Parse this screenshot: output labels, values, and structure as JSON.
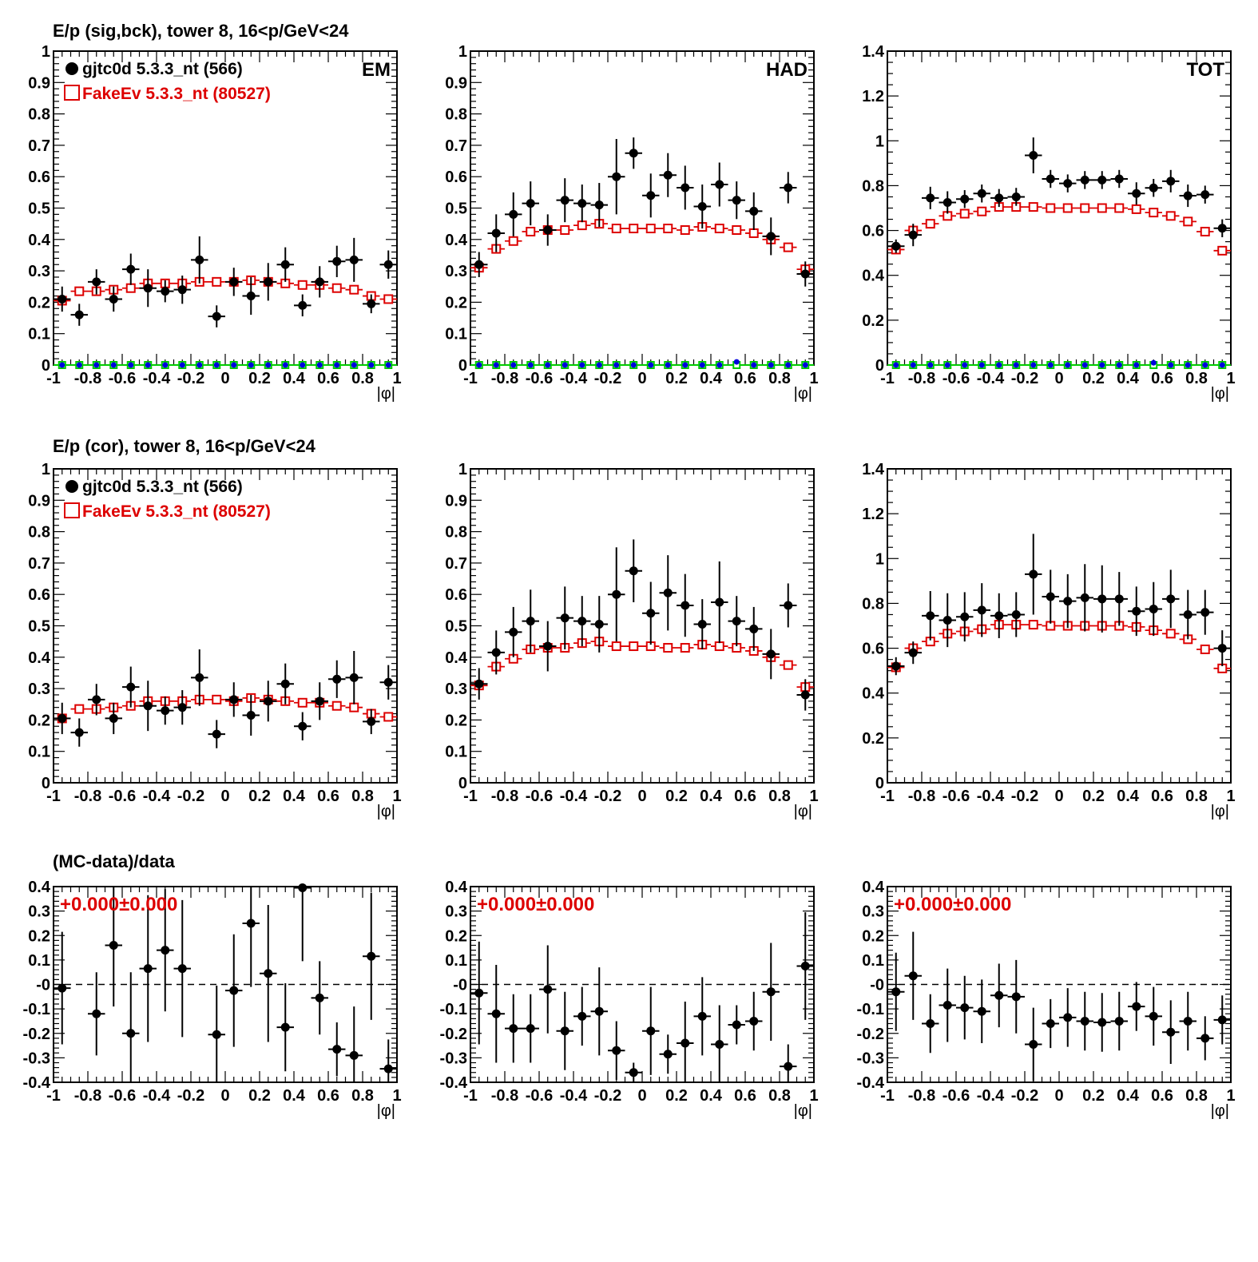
{
  "colors": {
    "data": "#000000",
    "mc": "#dd0000",
    "green": "#00cc00",
    "blue": "#0000dd"
  },
  "row_titles": [
    "E/p (sig,bck), tower 8, 16<p/GeV<24",
    "E/p (cor), tower 8, 16<p/GeV<24",
    "(MC-data)/data"
  ],
  "legend": {
    "data": "gjtc0d 5.3.3_nt (566)",
    "mc": "FakeEv 5.3.3_nt (80527)"
  },
  "xlabel": "|φ|",
  "x_ticks": [
    "-1",
    "-0.8",
    "-0.6",
    "-0.4",
    "-0.2",
    "0",
    "0.2",
    "0.4",
    "0.6",
    "0.8",
    "1"
  ],
  "panel_labels": [
    "EM",
    "HAD",
    "TOT"
  ],
  "ratio_text": "+0.000±0.000",
  "chart_data": [
    {
      "type": "scatter",
      "row": 0,
      "col": 0,
      "label": "EM",
      "xlim": [
        -1,
        1
      ],
      "ylim": [
        0,
        1
      ],
      "y_ticks": [
        "0",
        "0.1",
        "0.2",
        "0.3",
        "0.4",
        "0.5",
        "0.6",
        "0.7",
        "0.8",
        "0.9",
        "1"
      ],
      "x": [
        -0.95,
        -0.85,
        -0.75,
        -0.65,
        -0.55,
        -0.45,
        -0.35,
        -0.25,
        -0.15,
        -0.05,
        0.05,
        0.15,
        0.25,
        0.35,
        0.45,
        0.55,
        0.65,
        0.75,
        0.85,
        0.95
      ],
      "series": [
        {
          "key": "data",
          "values": [
            0.21,
            0.16,
            0.265,
            0.21,
            0.305,
            0.245,
            0.235,
            0.24,
            0.335,
            0.155,
            0.265,
            0.22,
            0.265,
            0.32,
            0.19,
            0.265,
            0.33,
            0.335,
            0.195,
            0.32
          ],
          "errors": [
            0.04,
            0.035,
            0.04,
            0.04,
            0.05,
            0.06,
            0.035,
            0.045,
            0.075,
            0.035,
            0.045,
            0.06,
            0.06,
            0.055,
            0.035,
            0.05,
            0.05,
            0.07,
            0.03,
            0.045
          ]
        },
        {
          "key": "mc",
          "values": [
            0.205,
            0.235,
            0.235,
            0.24,
            0.245,
            0.26,
            0.26,
            0.26,
            0.265,
            0.265,
            0.265,
            0.27,
            0.265,
            0.26,
            0.255,
            0.255,
            0.245,
            0.24,
            0.22,
            0.21
          ]
        },
        {
          "key": "green",
          "values": [
            0,
            0,
            0,
            0,
            0,
            0,
            0,
            0,
            0,
            0,
            0,
            0,
            0,
            0,
            0,
            0,
            0,
            0,
            0,
            0
          ]
        },
        {
          "key": "blue",
          "values": [
            0,
            0,
            0,
            0,
            0,
            0,
            0,
            0,
            0,
            0,
            0,
            0,
            0,
            0,
            0,
            0,
            0,
            0,
            0,
            0
          ]
        }
      ]
    },
    {
      "type": "scatter",
      "row": 0,
      "col": 1,
      "label": "HAD",
      "xlim": [
        -1,
        1
      ],
      "ylim": [
        0,
        1
      ],
      "y_ticks": [
        "0",
        "0.1",
        "0.2",
        "0.3",
        "0.4",
        "0.5",
        "0.6",
        "0.7",
        "0.8",
        "0.9",
        "1"
      ],
      "x": [
        -0.95,
        -0.85,
        -0.75,
        -0.65,
        -0.55,
        -0.45,
        -0.35,
        -0.25,
        -0.15,
        -0.05,
        0.05,
        0.15,
        0.25,
        0.35,
        0.45,
        0.55,
        0.65,
        0.75,
        0.85,
        0.95
      ],
      "series": [
        {
          "key": "data",
          "values": [
            0.32,
            0.42,
            0.48,
            0.515,
            0.43,
            0.525,
            0.515,
            0.51,
            0.6,
            0.675,
            0.54,
            0.605,
            0.565,
            0.505,
            0.575,
            0.525,
            0.49,
            0.41,
            0.565,
            0.29
          ],
          "errors": [
            0.04,
            0.06,
            0.07,
            0.07,
            0.05,
            0.07,
            0.06,
            0.07,
            0.12,
            0.05,
            0.07,
            0.07,
            0.07,
            0.07,
            0.07,
            0.06,
            0.06,
            0.06,
            0.05,
            0.04
          ]
        },
        {
          "key": "mc",
          "values": [
            0.31,
            0.37,
            0.395,
            0.425,
            0.43,
            0.43,
            0.445,
            0.45,
            0.435,
            0.435,
            0.435,
            0.435,
            0.43,
            0.44,
            0.435,
            0.43,
            0.42,
            0.4,
            0.375,
            0.305
          ]
        },
        {
          "key": "green",
          "values": [
            0,
            0,
            0,
            0,
            0,
            0,
            0,
            0,
            0,
            0,
            0,
            0,
            0,
            0,
            0,
            0,
            0,
            0,
            0,
            0
          ]
        },
        {
          "key": "blue",
          "values": [
            0,
            0,
            0,
            0,
            0,
            0,
            0,
            0,
            0,
            0,
            0,
            0,
            0,
            0,
            0,
            0.01,
            0,
            0,
            0,
            0
          ]
        }
      ]
    },
    {
      "type": "scatter",
      "row": 0,
      "col": 2,
      "label": "TOT",
      "xlim": [
        -1,
        1
      ],
      "ylim": [
        0,
        1.4
      ],
      "y_ticks": [
        "0",
        "0.2",
        "0.4",
        "0.6",
        "0.8",
        "1",
        "1.2",
        "1.4"
      ],
      "x": [
        -0.95,
        -0.85,
        -0.75,
        -0.65,
        -0.55,
        -0.45,
        -0.35,
        -0.25,
        -0.15,
        -0.05,
        0.05,
        0.15,
        0.25,
        0.35,
        0.45,
        0.55,
        0.65,
        0.75,
        0.85,
        0.95
      ],
      "series": [
        {
          "key": "data",
          "values": [
            0.53,
            0.58,
            0.745,
            0.725,
            0.74,
            0.765,
            0.745,
            0.75,
            0.935,
            0.83,
            0.81,
            0.825,
            0.825,
            0.83,
            0.765,
            0.79,
            0.82,
            0.755,
            0.76,
            0.61
          ],
          "errors": [
            0.03,
            0.05,
            0.05,
            0.05,
            0.04,
            0.04,
            0.04,
            0.04,
            0.08,
            0.04,
            0.04,
            0.04,
            0.04,
            0.04,
            0.05,
            0.04,
            0.05,
            0.05,
            0.04,
            0.04
          ]
        },
        {
          "key": "mc",
          "values": [
            0.515,
            0.6,
            0.63,
            0.665,
            0.675,
            0.685,
            0.705,
            0.705,
            0.705,
            0.7,
            0.7,
            0.7,
            0.7,
            0.7,
            0.695,
            0.68,
            0.665,
            0.64,
            0.595,
            0.51
          ]
        },
        {
          "key": "green",
          "values": [
            0,
            0,
            0,
            0,
            0,
            0,
            0,
            0,
            0,
            0,
            0,
            0,
            0,
            0,
            0,
            0,
            0,
            0,
            0,
            0
          ]
        },
        {
          "key": "blue",
          "values": [
            0,
            0,
            0,
            0,
            0,
            0,
            0,
            0,
            0,
            0,
            0,
            0,
            0,
            0,
            0,
            0.01,
            0,
            0,
            0,
            0
          ]
        }
      ]
    },
    {
      "type": "scatter",
      "row": 1,
      "col": 0,
      "xlim": [
        -1,
        1
      ],
      "ylim": [
        0,
        1
      ],
      "y_ticks": [
        "0",
        "0.1",
        "0.2",
        "0.3",
        "0.4",
        "0.5",
        "0.6",
        "0.7",
        "0.8",
        "0.9",
        "1"
      ],
      "x": [
        -0.95,
        -0.85,
        -0.75,
        -0.65,
        -0.55,
        -0.45,
        -0.35,
        -0.25,
        -0.15,
        -0.05,
        0.05,
        0.15,
        0.25,
        0.35,
        0.45,
        0.55,
        0.65,
        0.75,
        0.85,
        0.95
      ],
      "series": [
        {
          "key": "data",
          "values": [
            0.205,
            0.16,
            0.265,
            0.205,
            0.305,
            0.245,
            0.23,
            0.24,
            0.335,
            0.155,
            0.265,
            0.215,
            0.26,
            0.315,
            0.18,
            0.26,
            0.33,
            0.335,
            0.195,
            0.32
          ],
          "errors": [
            0.05,
            0.045,
            0.05,
            0.05,
            0.065,
            0.08,
            0.045,
            0.055,
            0.09,
            0.045,
            0.055,
            0.065,
            0.065,
            0.065,
            0.045,
            0.06,
            0.06,
            0.085,
            0.04,
            0.055
          ]
        },
        {
          "key": "mc",
          "values": [
            0.205,
            0.235,
            0.235,
            0.24,
            0.245,
            0.26,
            0.26,
            0.26,
            0.265,
            0.265,
            0.26,
            0.27,
            0.265,
            0.26,
            0.255,
            0.255,
            0.245,
            0.24,
            0.22,
            0.21
          ]
        }
      ]
    },
    {
      "type": "scatter",
      "row": 1,
      "col": 1,
      "xlim": [
        -1,
        1
      ],
      "ylim": [
        0,
        1
      ],
      "y_ticks": [
        "0",
        "0.1",
        "0.2",
        "0.3",
        "0.4",
        "0.5",
        "0.6",
        "0.7",
        "0.8",
        "0.9",
        "1"
      ],
      "x": [
        -0.95,
        -0.85,
        -0.75,
        -0.65,
        -0.55,
        -0.45,
        -0.35,
        -0.25,
        -0.15,
        -0.05,
        0.05,
        0.15,
        0.25,
        0.35,
        0.45,
        0.55,
        0.65,
        0.75,
        0.85,
        0.95
      ],
      "series": [
        {
          "key": "data",
          "values": [
            0.315,
            0.415,
            0.48,
            0.515,
            0.435,
            0.525,
            0.515,
            0.505,
            0.6,
            0.675,
            0.54,
            0.605,
            0.565,
            0.505,
            0.575,
            0.515,
            0.49,
            0.41,
            0.565,
            0.28
          ],
          "errors": [
            0.05,
            0.07,
            0.08,
            0.1,
            0.08,
            0.1,
            0.08,
            0.09,
            0.15,
            0.1,
            0.1,
            0.12,
            0.1,
            0.08,
            0.13,
            0.08,
            0.07,
            0.08,
            0.07,
            0.05
          ]
        },
        {
          "key": "mc",
          "values": [
            0.31,
            0.37,
            0.395,
            0.425,
            0.43,
            0.43,
            0.445,
            0.45,
            0.435,
            0.435,
            0.435,
            0.43,
            0.43,
            0.44,
            0.435,
            0.43,
            0.42,
            0.4,
            0.375,
            0.305
          ]
        }
      ]
    },
    {
      "type": "scatter",
      "row": 1,
      "col": 2,
      "xlim": [
        -1,
        1
      ],
      "ylim": [
        0,
        1.4
      ],
      "y_ticks": [
        "0",
        "0.2",
        "0.4",
        "0.6",
        "0.8",
        "1",
        "1.2",
        "1.4"
      ],
      "x": [
        -0.95,
        -0.85,
        -0.75,
        -0.65,
        -0.55,
        -0.45,
        -0.35,
        -0.25,
        -0.15,
        -0.05,
        0.05,
        0.15,
        0.25,
        0.35,
        0.45,
        0.55,
        0.65,
        0.75,
        0.85,
        0.95
      ],
      "series": [
        {
          "key": "data",
          "values": [
            0.52,
            0.58,
            0.745,
            0.725,
            0.74,
            0.77,
            0.745,
            0.75,
            0.93,
            0.83,
            0.81,
            0.825,
            0.82,
            0.82,
            0.765,
            0.775,
            0.82,
            0.75,
            0.76,
            0.6
          ],
          "errors": [
            0.04,
            0.05,
            0.11,
            0.12,
            0.11,
            0.12,
            0.1,
            0.1,
            0.18,
            0.12,
            0.12,
            0.15,
            0.15,
            0.12,
            0.11,
            0.12,
            0.13,
            0.11,
            0.1,
            0.08
          ]
        },
        {
          "key": "mc",
          "values": [
            0.515,
            0.6,
            0.63,
            0.665,
            0.675,
            0.685,
            0.705,
            0.705,
            0.705,
            0.7,
            0.7,
            0.7,
            0.7,
            0.7,
            0.695,
            0.68,
            0.665,
            0.64,
            0.595,
            0.51
          ]
        }
      ]
    },
    {
      "type": "scatter",
      "row": 2,
      "col": 0,
      "xlim": [
        -1,
        1
      ],
      "ylim": [
        -0.4,
        0.4
      ],
      "y_ticks": [
        "-0.4",
        "-0.3",
        "-0.2",
        "-0.1",
        "-0",
        "0.1",
        "0.2",
        "0.3",
        "0.4"
      ],
      "x": [
        -0.95,
        -0.85,
        -0.75,
        -0.65,
        -0.55,
        -0.45,
        -0.35,
        -0.25,
        -0.15,
        -0.05,
        0.05,
        0.15,
        0.25,
        0.35,
        0.45,
        0.55,
        0.65,
        0.75,
        0.85,
        0.95
      ],
      "series": [
        {
          "key": "data",
          "points": [
            0,
            2,
            3,
            4,
            5,
            6,
            7,
            9,
            10,
            11,
            12,
            13,
            14,
            15,
            16,
            17,
            18,
            19
          ],
          "values": [
            -0.015,
            -0.12,
            0.16,
            -0.2,
            0.065,
            0.14,
            0.065,
            -0.205,
            -0.025,
            0.25,
            0.045,
            -0.175,
            0.395,
            -0.055,
            -0.265,
            -0.29,
            0.115,
            -0.345
          ],
          "errors": [
            0.23,
            0.17,
            0.25,
            0.25,
            0.3,
            0.25,
            0.28,
            0.2,
            0.23,
            0.26,
            0.28,
            0.18,
            0.3,
            0.15,
            0.11,
            0.2,
            0.26,
            0.12
          ]
        }
      ]
    },
    {
      "type": "scatter",
      "row": 2,
      "col": 1,
      "xlim": [
        -1,
        1
      ],
      "ylim": [
        -0.4,
        0.4
      ],
      "y_ticks": [
        "-0.4",
        "-0.3",
        "-0.2",
        "-0.1",
        "-0",
        "0.1",
        "0.2",
        "0.3",
        "0.4"
      ],
      "x": [
        -0.95,
        -0.85,
        -0.75,
        -0.65,
        -0.55,
        -0.45,
        -0.35,
        -0.25,
        -0.15,
        -0.05,
        0.05,
        0.15,
        0.25,
        0.35,
        0.45,
        0.55,
        0.65,
        0.75,
        0.85,
        0.95
      ],
      "series": [
        {
          "key": "data",
          "values": [
            -0.035,
            -0.12,
            -0.18,
            -0.18,
            -0.02,
            -0.19,
            -0.13,
            -0.11,
            -0.27,
            -0.36,
            -0.19,
            -0.285,
            -0.24,
            -0.13,
            -0.245,
            -0.165,
            -0.15,
            -0.03,
            -0.335,
            0.075
          ],
          "errors": [
            0.21,
            0.2,
            0.14,
            0.14,
            0.18,
            0.16,
            0.12,
            0.18,
            0.12,
            0.04,
            0.18,
            0.08,
            0.17,
            0.16,
            0.16,
            0.08,
            0.12,
            0.2,
            0.09,
            0.22
          ]
        }
      ]
    },
    {
      "type": "scatter",
      "row": 2,
      "col": 2,
      "xlim": [
        -1,
        1
      ],
      "ylim": [
        -0.4,
        0.4
      ],
      "y_ticks": [
        "-0.4",
        "-0.3",
        "-0.2",
        "-0.1",
        "-0",
        "0.1",
        "0.2",
        "0.3",
        "0.4"
      ],
      "x": [
        -0.95,
        -0.85,
        -0.75,
        -0.65,
        -0.55,
        -0.45,
        -0.35,
        -0.25,
        -0.15,
        -0.05,
        0.05,
        0.15,
        0.25,
        0.35,
        0.45,
        0.55,
        0.65,
        0.75,
        0.85,
        0.95
      ],
      "series": [
        {
          "key": "data",
          "values": [
            -0.03,
            0.035,
            -0.16,
            -0.085,
            -0.095,
            -0.11,
            -0.045,
            -0.05,
            -0.245,
            -0.16,
            -0.135,
            -0.15,
            -0.155,
            -0.15,
            -0.09,
            -0.13,
            -0.195,
            -0.15,
            -0.22,
            -0.145
          ],
          "errors": [
            0.16,
            0.18,
            0.12,
            0.15,
            0.13,
            0.13,
            0.13,
            0.15,
            0.15,
            0.1,
            0.12,
            0.12,
            0.12,
            0.12,
            0.1,
            0.12,
            0.13,
            0.12,
            0.09,
            0.1
          ]
        }
      ]
    }
  ]
}
